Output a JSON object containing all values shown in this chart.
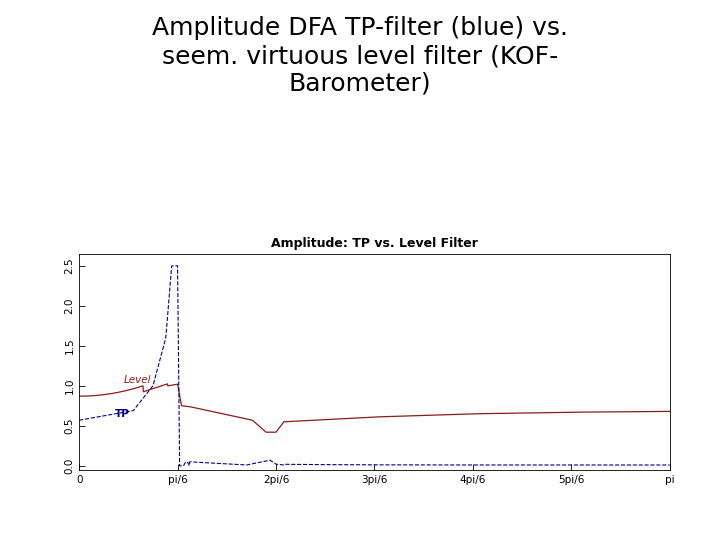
{
  "title_main": "Amplitude DFA TP-filter (blue) vs.\nseem. virtuous level filter (KOF-\nBarometer)",
  "subplot_title": "Amplitude: TP vs. Level Filter",
  "tp_color": "#00008B",
  "level_color": "#8B1A1A",
  "background_color": "#ffffff",
  "ylim": [
    -0.05,
    2.65
  ],
  "yticks": [
    0.0,
    0.5,
    1.0,
    1.5,
    2.0,
    2.5
  ],
  "ytick_labels": [
    "0.0",
    "0.5",
    "1.0",
    "1.5",
    "2.0",
    "2.5"
  ],
  "xtick_positions": [
    0.0,
    0.5236,
    1.0472,
    1.5708,
    2.0944,
    2.618,
    3.1416
  ],
  "xtick_labels": [
    "0",
    "pi/6",
    "2pi/6",
    "3pi/6",
    "4pi/6",
    "5pi/6",
    "pi"
  ],
  "legend_tp": "TP",
  "legend_level": "Level",
  "n_points": 2000,
  "title_fontsize": 18,
  "subplot_title_fontsize": 9
}
